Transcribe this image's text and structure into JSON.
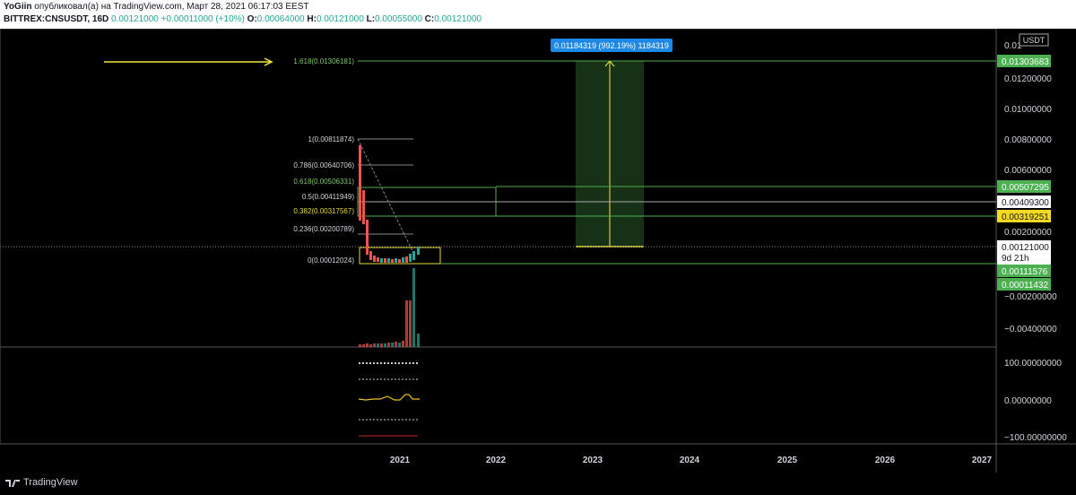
{
  "header": {
    "author": "YoGiin",
    "published_text": "опубликовал(а) на TradingView.com, Март 28, 2021 06:17:03 EEST",
    "symbol": "BITTREX:CNSUSDT, 16D",
    "last": "0.00121000",
    "change": "+0.00011000 (+10%)",
    "o_label": "O:",
    "o": "0.00064000",
    "h_label": "H:",
    "h": "0.00121000",
    "l_label": "L:",
    "l": "0.00055000",
    "c_label": "C:",
    "c": "0.00121000"
  },
  "currency_badge": "USDT",
  "fib_levels": [
    {
      "label": "1.618(0.01306181)",
      "color": "#7cc86a"
    },
    {
      "label": "1(0.00811874)",
      "color": "#d1d4dc"
    },
    {
      "label": "0.786(0.00640706)",
      "color": "#d1d4dc"
    },
    {
      "label": "0.618(0.00506331)",
      "color": "#7cc86a"
    },
    {
      "label": "0.5(0.00411949)",
      "color": "#d1d4dc"
    },
    {
      "label": "0.382(0.00317567)",
      "color": "#e8d735"
    },
    {
      "label": "0.236(0.00200789)",
      "color": "#d1d4dc"
    },
    {
      "label": "0(0.00012024)",
      "color": "#d1d4dc"
    }
  ],
  "measure_label": "0.01184319 (992.19%) 1184319",
  "price_axis": {
    "ticks": [
      "0.01200000",
      "0.01000000",
      "0.00800000",
      "0.00600000",
      "0.00200000",
      "−0.00200000",
      "−0.00400000"
    ],
    "top_partial": "0.01",
    "badges": [
      {
        "text": "0.01303683",
        "bg": "#4caf50",
        "fg": "#ffffff"
      },
      {
        "text": "0.00507295",
        "bg": "#4caf50",
        "fg": "#ffffff"
      },
      {
        "text": "0.00409300",
        "bg": "#ffffff",
        "fg": "#131722"
      },
      {
        "text": "0.00319251",
        "bg": "#f5d923",
        "fg": "#131722"
      },
      {
        "text": "0.00121000",
        "bg": "#ffffff",
        "fg": "#131722"
      },
      {
        "text": "9d 21h",
        "bg": "#000000",
        "fg": "#d1d4dc"
      },
      {
        "text": "0.00111576",
        "bg": "#4caf50",
        "fg": "#ffffff"
      },
      {
        "text": "0.00011432",
        "bg": "#4caf50",
        "fg": "#ffffff"
      }
    ]
  },
  "indicator_axis": [
    "100.00000000",
    "0.00000000",
    "−100.00000000"
  ],
  "time_axis": [
    "2021",
    "2022",
    "2023",
    "2024",
    "2025",
    "2026",
    "2027"
  ],
  "footer": {
    "brand": "TradingView"
  },
  "colors": {
    "up": "#26a69a",
    "down": "#ef5350",
    "fib_green": "#4caf50",
    "arrow": "#f5e642"
  }
}
